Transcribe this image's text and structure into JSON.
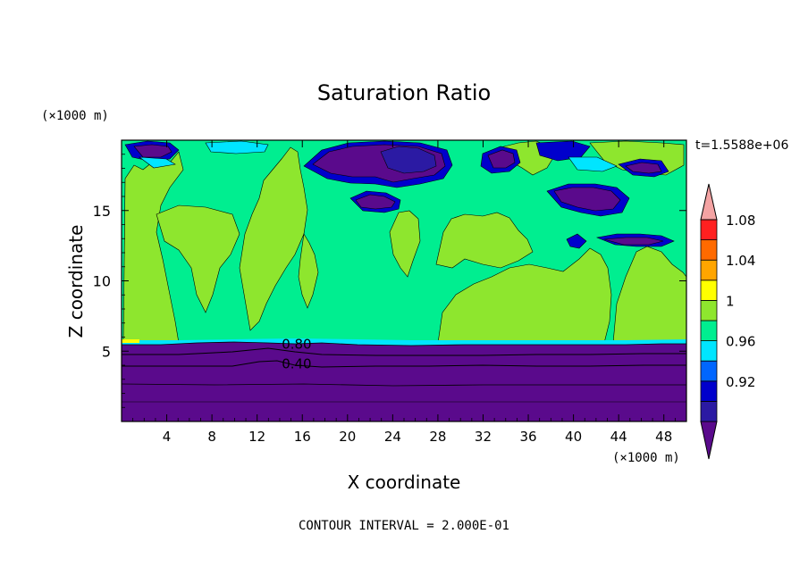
{
  "chart_data": {
    "type": "heatmap",
    "title": "Saturation Ratio",
    "time_label": "t=1.5588e+06",
    "xlabel": "X coordinate",
    "ylabel": "Z coordinate",
    "x_unit": "(×1000 m)",
    "y_unit": "(×1000 m)",
    "footer": "CONTOUR INTERVAL = 2.000E-01",
    "x_range": [
      0,
      50
    ],
    "y_range": [
      0,
      20
    ],
    "x_ticks": [
      4,
      8,
      12,
      16,
      20,
      24,
      28,
      32,
      36,
      40,
      44,
      48
    ],
    "y_ticks": [
      5,
      10,
      15
    ],
    "colorbar": {
      "levels": [
        0.92,
        0.96,
        1,
        1.04,
        1.08
      ],
      "labels": [
        "0.92",
        "0.96",
        "1",
        "1.04",
        "1.08"
      ],
      "colors": [
        "#5a0a8c",
        "#2b1aa3",
        "#0000cc",
        "#0066ff",
        "#00e5ff",
        "#00ee90",
        "#8ee62e",
        "#ffff00",
        "#ffa500",
        "#ff6a00",
        "#ff2020",
        "#f4a3a3"
      ]
    },
    "contour_labels": [
      {
        "text": "0.80",
        "x": 15.5,
        "z": 5.5
      },
      {
        "text": "0.40",
        "x": 15.5,
        "z": 4.1
      }
    ],
    "regions": {
      "below_cloud_base_max_z": 5.6,
      "dominant_above": "1 to 1.04",
      "near_saturation_columns_x": [
        [
          0.5,
          3.8
        ],
        [
          10.5,
          15
        ],
        [
          16,
          24
        ],
        [
          26,
          30
        ],
        [
          32,
          42
        ],
        [
          44.5,
          50
        ]
      ]
    }
  }
}
